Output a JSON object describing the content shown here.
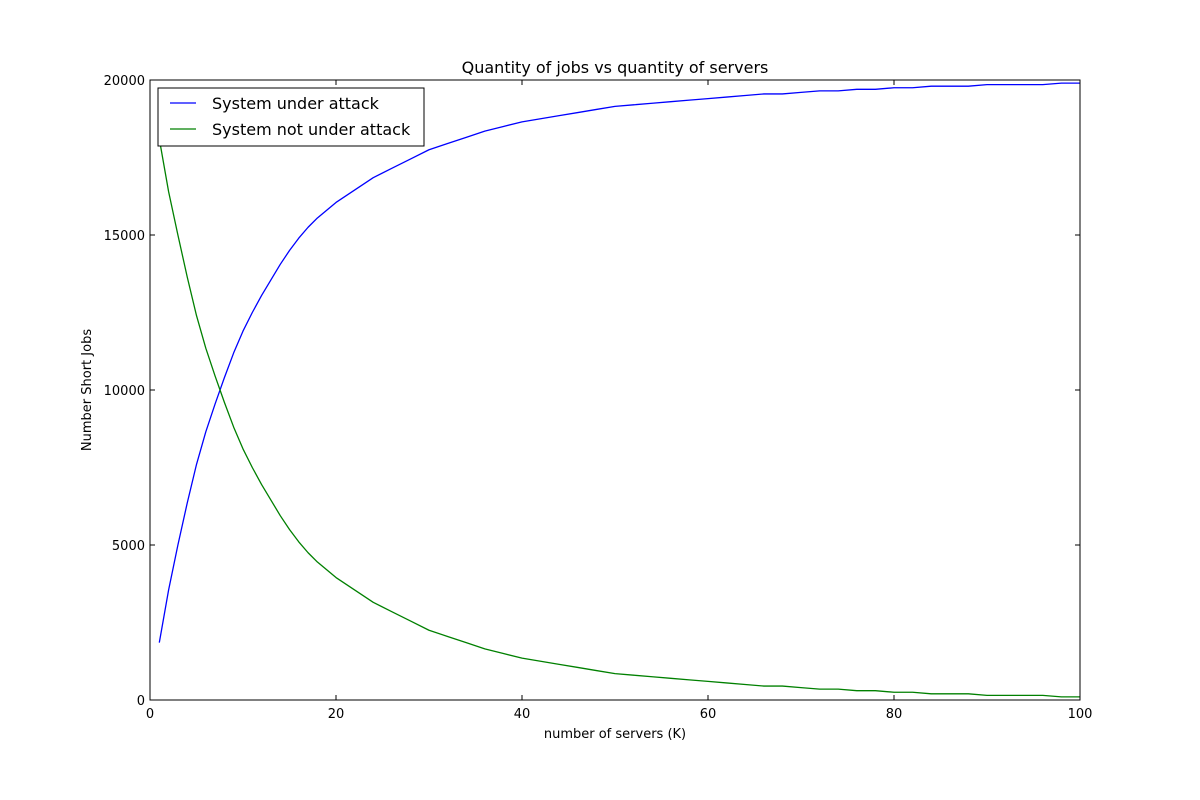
{
  "chart_data": {
    "type": "line",
    "title": "Quantity of jobs vs quantity of servers",
    "xlabel": "number of servers (K)",
    "ylabel": "Number Short Jobs",
    "xlim": [
      0,
      100
    ],
    "ylim": [
      0,
      20000
    ],
    "xticks": [
      0,
      20,
      40,
      60,
      80,
      100
    ],
    "yticks": [
      0,
      5000,
      10000,
      15000,
      20000
    ],
    "grid": false,
    "legend_position": "top-left",
    "x": [
      1,
      2,
      3,
      4,
      5,
      6,
      7,
      8,
      9,
      10,
      11,
      12,
      13,
      14,
      15,
      16,
      17,
      18,
      19,
      20,
      22,
      24,
      26,
      28,
      30,
      32,
      34,
      36,
      38,
      40,
      42,
      44,
      46,
      48,
      50,
      52,
      54,
      56,
      58,
      60,
      62,
      64,
      66,
      68,
      70,
      72,
      74,
      76,
      78,
      80,
      82,
      84,
      86,
      88,
      90,
      92,
      94,
      96,
      98,
      100
    ],
    "series": [
      {
        "name": "System under attack",
        "color": "#0000ff",
        "values": [
          1850,
          3550,
          5000,
          6350,
          7600,
          8650,
          9550,
          10400,
          11200,
          11900,
          12500,
          13050,
          13550,
          14050,
          14500,
          14900,
          15250,
          15550,
          15800,
          16050,
          16450,
          16850,
          17150,
          17450,
          17750,
          17950,
          18150,
          18350,
          18500,
          18650,
          18750,
          18850,
          18950,
          19050,
          19150,
          19200,
          19250,
          19300,
          19350,
          19400,
          19450,
          19500,
          19550,
          19550,
          19600,
          19650,
          19650,
          19700,
          19700,
          19750,
          19750,
          19800,
          19800,
          19800,
          19850,
          19850,
          19850,
          19850,
          19900,
          19900
        ]
      },
      {
        "name": "System not under attack",
        "color": "#008000",
        "values": [
          18100,
          16400,
          15000,
          13650,
          12400,
          11350,
          10450,
          9600,
          8800,
          8100,
          7500,
          6950,
          6450,
          5950,
          5500,
          5100,
          4750,
          4450,
          4200,
          3950,
          3550,
          3150,
          2850,
          2550,
          2250,
          2050,
          1850,
          1650,
          1500,
          1350,
          1250,
          1150,
          1050,
          950,
          850,
          800,
          750,
          700,
          650,
          600,
          550,
          500,
          450,
          450,
          400,
          350,
          350,
          300,
          300,
          250,
          250,
          200,
          200,
          200,
          150,
          150,
          150,
          150,
          100,
          100
        ]
      }
    ]
  }
}
